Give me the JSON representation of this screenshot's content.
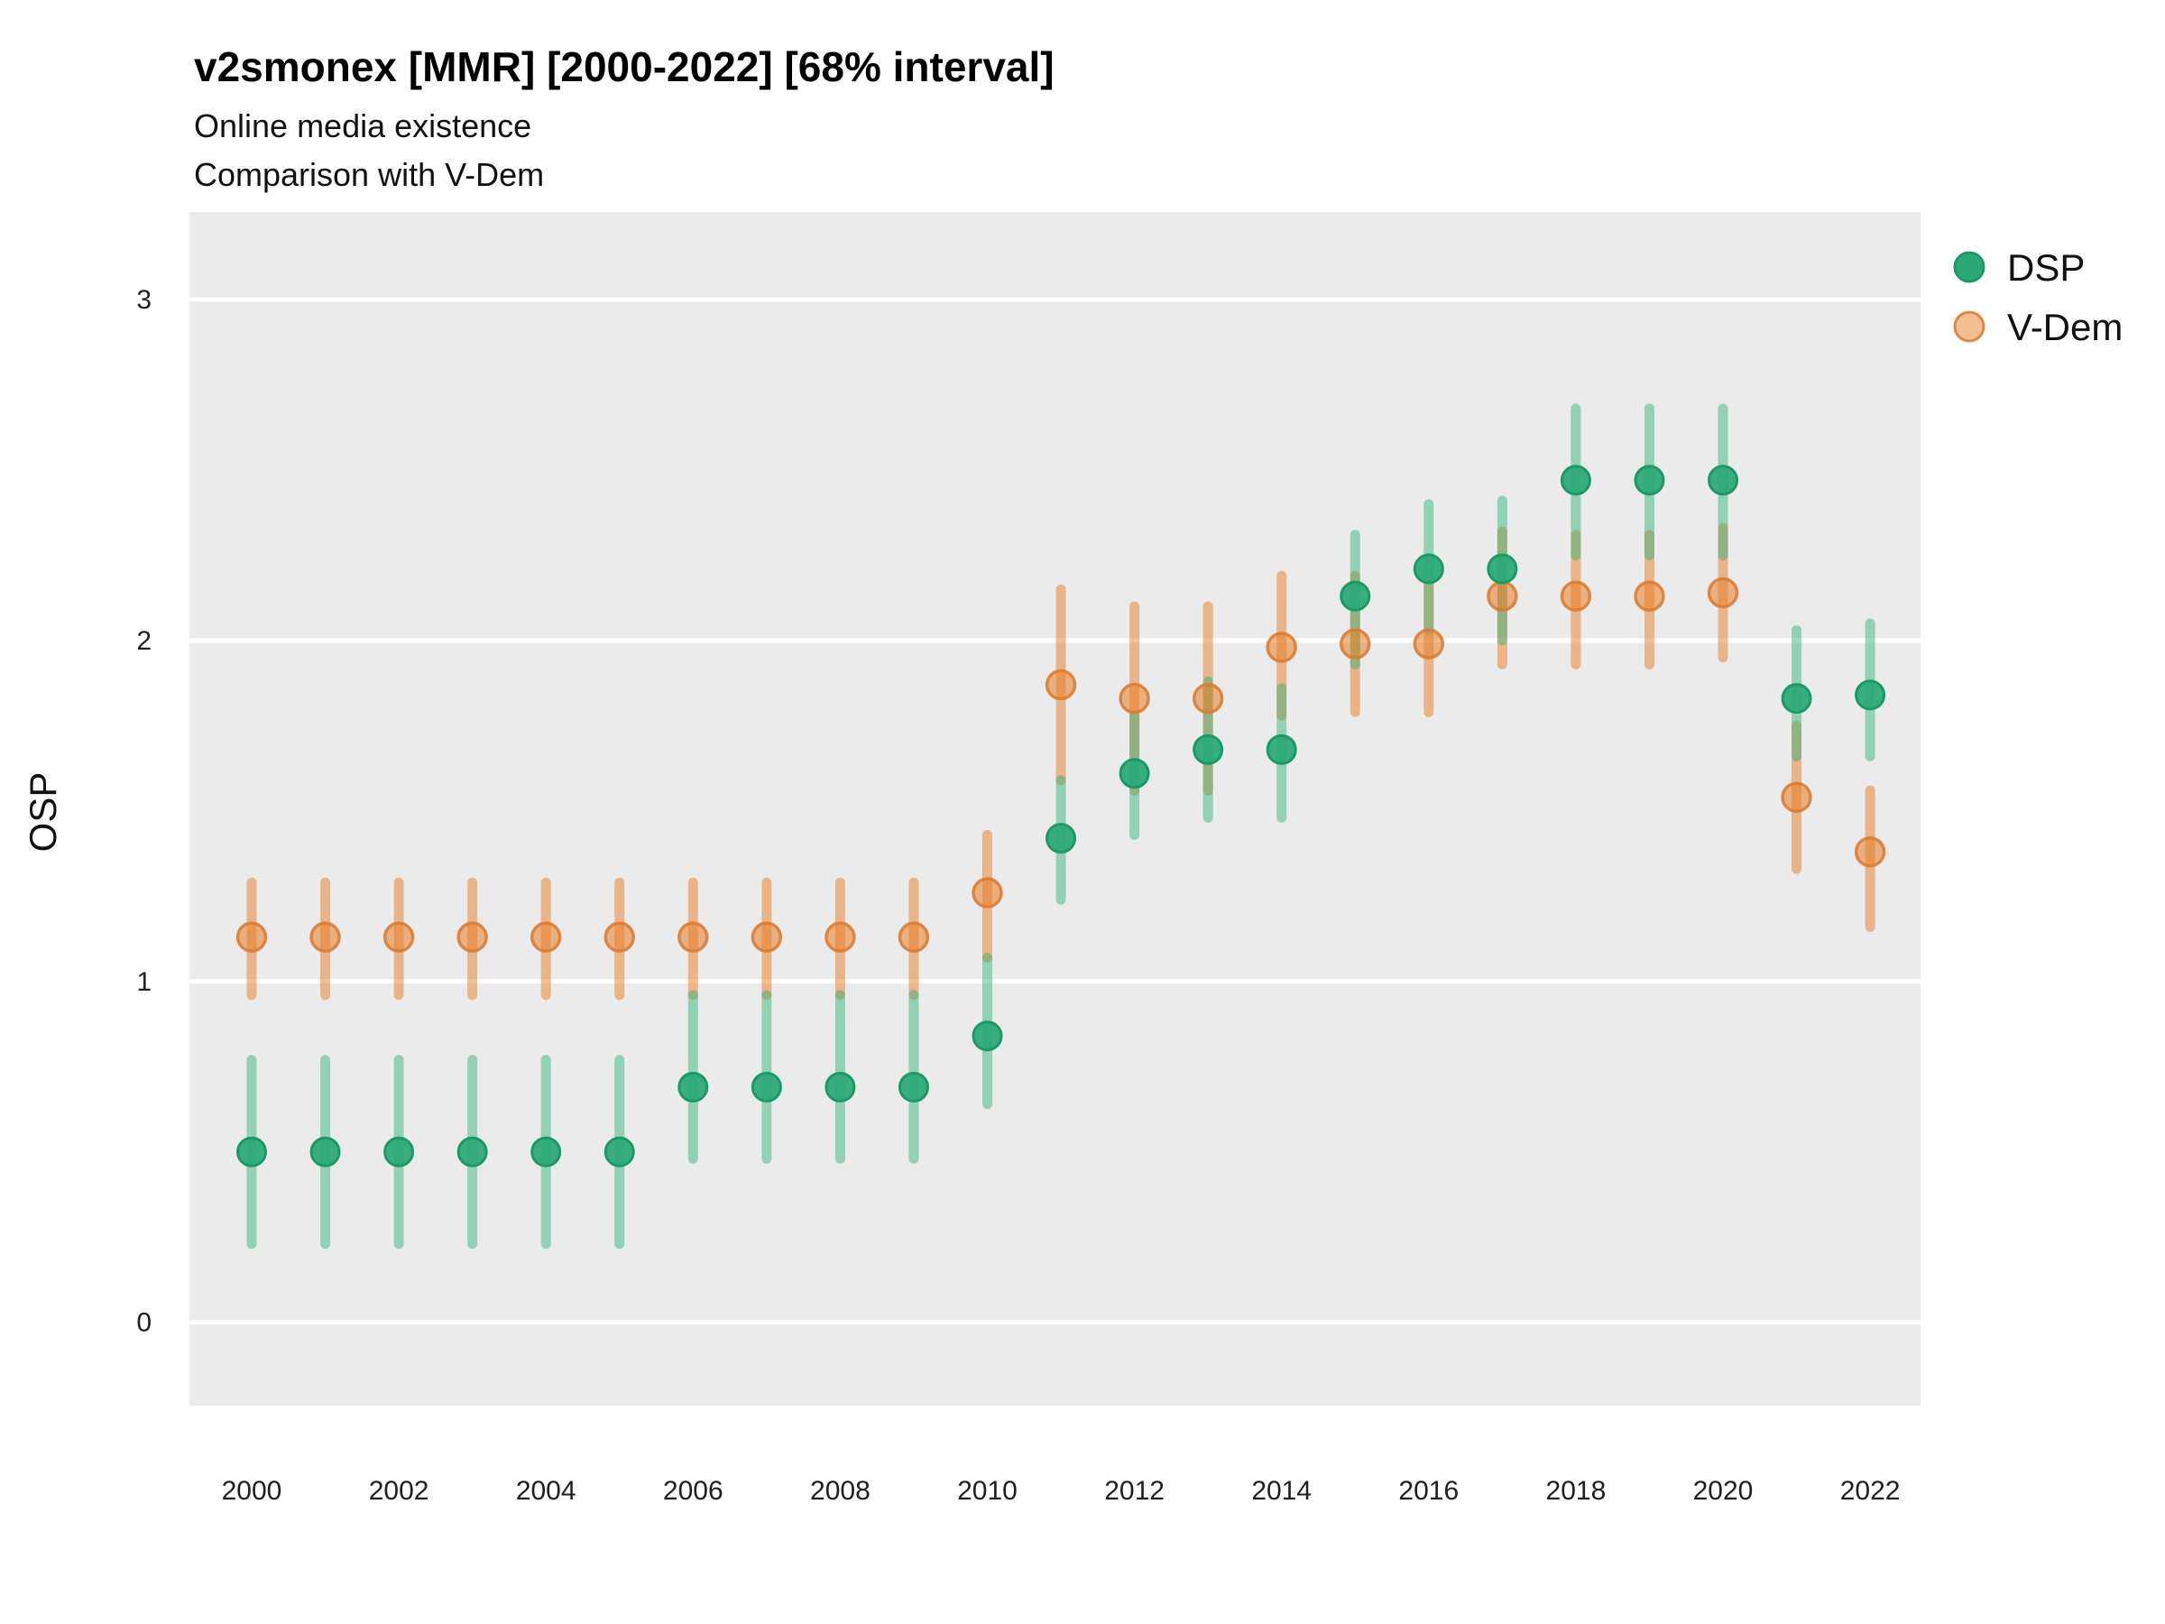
{
  "header": {
    "title": "v2smonex [MMR] [2000-2022] [68% interval]",
    "subtitle1": "Online media existence",
    "subtitle2": "Comparison with V-Dem"
  },
  "axes": {
    "y_label": "OSP",
    "y_ticks": [
      "0",
      "1",
      "2",
      "3"
    ],
    "x_ticks": [
      "2000",
      "2002",
      "2004",
      "2006",
      "2008",
      "2010",
      "2012",
      "2014",
      "2016",
      "2018",
      "2020",
      "2022"
    ]
  },
  "legend": {
    "items": [
      {
        "label": "DSP",
        "color": "#2AA877"
      },
      {
        "label": "V-Dem",
        "color": "#EA7E27"
      }
    ]
  },
  "colors": {
    "panel_background": "#EBEBEB",
    "gridline": "#FFFFFF",
    "dsp_point_fill": "#2AA877",
    "dsp_point_stroke": "#1C9A66",
    "dsp_bar": "#27B177",
    "vdem_point_fill": "#EA7E27",
    "vdem_point_stroke": "#D87A30",
    "vdem_bar": "#EA7E27",
    "text": "#111111"
  },
  "chart_data": {
    "type": "scatter",
    "subtype": "point-with-68pct-interval",
    "title": "v2smonex [MMR] [2000-2022] [68% interval]",
    "subtitle": [
      "Online media existence",
      "Comparison with V-Dem"
    ],
    "xlabel": "",
    "ylabel": "OSP",
    "x": [
      2000,
      2001,
      2002,
      2003,
      2004,
      2005,
      2006,
      2007,
      2008,
      2009,
      2010,
      2011,
      2012,
      2013,
      2014,
      2015,
      2016,
      2017,
      2018,
      2019,
      2020,
      2021,
      2022
    ],
    "x_tick_years": [
      2000,
      2002,
      2004,
      2006,
      2008,
      2010,
      2012,
      2014,
      2016,
      2018,
      2020,
      2022
    ],
    "yticks": [
      0,
      1,
      2,
      3
    ],
    "ylim": [
      -0.26,
      3.26
    ],
    "grid": "horizontal-major-only",
    "legend_position": "right",
    "series": [
      {
        "name": "DSP",
        "values": [
          0.5,
          0.5,
          0.5,
          0.5,
          0.5,
          0.5,
          0.69,
          0.69,
          0.69,
          0.69,
          0.84,
          1.42,
          1.61,
          1.68,
          1.68,
          2.13,
          2.21,
          2.21,
          2.47,
          2.47,
          2.47,
          1.83,
          1.84
        ],
        "lower": [
          0.23,
          0.23,
          0.23,
          0.23,
          0.23,
          0.23,
          0.48,
          0.48,
          0.48,
          0.48,
          0.64,
          1.24,
          1.43,
          1.48,
          1.48,
          1.93,
          2.03,
          2.0,
          2.25,
          2.25,
          2.25,
          1.66,
          1.66
        ],
        "upper": [
          0.77,
          0.77,
          0.77,
          0.77,
          0.77,
          0.77,
          0.96,
          0.96,
          0.96,
          0.96,
          1.07,
          1.59,
          1.78,
          1.88,
          1.86,
          2.31,
          2.4,
          2.41,
          2.68,
          2.68,
          2.68,
          2.03,
          2.05
        ]
      },
      {
        "name": "V-Dem",
        "values": [
          1.13,
          1.13,
          1.13,
          1.13,
          1.13,
          1.13,
          1.13,
          1.13,
          1.13,
          1.13,
          1.26,
          1.87,
          1.83,
          1.83,
          1.98,
          1.99,
          1.99,
          2.13,
          2.13,
          2.13,
          2.14,
          1.54,
          1.38
        ],
        "lower": [
          0.96,
          0.96,
          0.96,
          0.96,
          0.96,
          0.96,
          0.96,
          0.96,
          0.96,
          0.96,
          1.07,
          1.59,
          1.56,
          1.56,
          1.78,
          1.79,
          1.79,
          1.93,
          1.93,
          1.93,
          1.95,
          1.33,
          1.16
        ],
        "upper": [
          1.29,
          1.29,
          1.29,
          1.29,
          1.29,
          1.29,
          1.29,
          1.29,
          1.29,
          1.29,
          1.43,
          2.15,
          2.1,
          2.1,
          2.19,
          2.19,
          2.19,
          2.32,
          2.31,
          2.31,
          2.33,
          1.75,
          1.56
        ]
      }
    ]
  }
}
